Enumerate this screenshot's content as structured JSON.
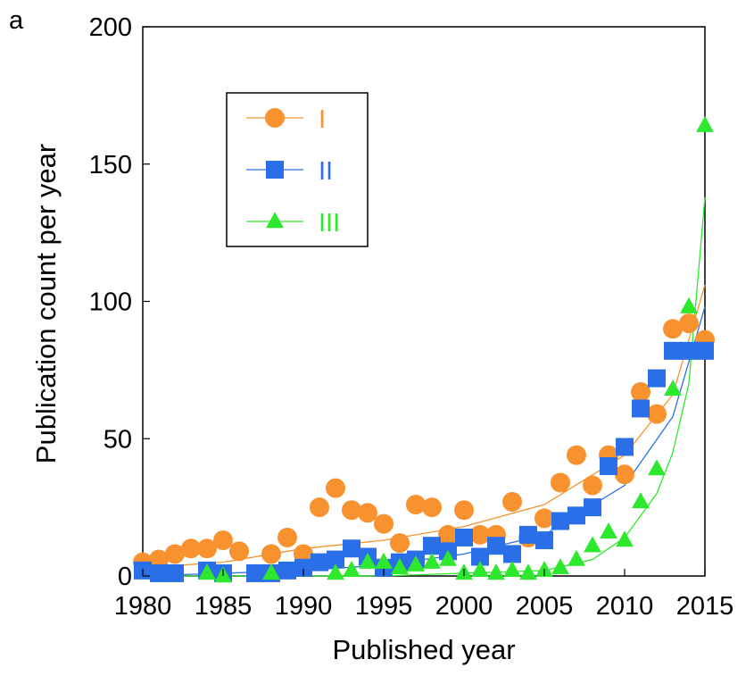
{
  "panel_label": "a",
  "chart_data": {
    "type": "scatter",
    "title": "",
    "xlabel": "Published year",
    "ylabel": "Publication count per year",
    "xlim": [
      1980,
      2015
    ],
    "ylim": [
      0,
      200
    ],
    "xticks": [
      1980,
      1985,
      1990,
      1995,
      2000,
      2005,
      2010,
      2015
    ],
    "yticks": [
      0,
      50,
      100,
      150,
      200
    ],
    "grid": false,
    "legend": "top-left",
    "series": [
      {
        "name": "I",
        "color": "#F7922E",
        "marker": "circle",
        "x": [
          1980,
          1981,
          1982,
          1983,
          1984,
          1985,
          1986,
          1988,
          1989,
          1990,
          1991,
          1992,
          1993,
          1994,
          1995,
          1996,
          1997,
          1998,
          1999,
          2000,
          2001,
          2002,
          2003,
          2004,
          2005,
          2006,
          2007,
          2008,
          2009,
          2010,
          2011,
          2012,
          2013,
          2014,
          2015
        ],
        "y": [
          5,
          6,
          8,
          10,
          10,
          13,
          9,
          8,
          14,
          8,
          25,
          32,
          24,
          23,
          19,
          12,
          26,
          25,
          15,
          24,
          15,
          15,
          27,
          14,
          21,
          34,
          44,
          33,
          44,
          37,
          67,
          59,
          90,
          92,
          86
        ],
        "trend": [
          [
            1980,
            3
          ],
          [
            1985,
            5
          ],
          [
            1990,
            10
          ],
          [
            1995,
            13
          ],
          [
            2000,
            18
          ],
          [
            2005,
            26
          ],
          [
            2010,
            44
          ],
          [
            2013,
            66
          ],
          [
            2015,
            106
          ]
        ]
      },
      {
        "name": "II",
        "color": "#2B6FE8",
        "marker": "square",
        "x": [
          1980,
          1981,
          1982,
          1984,
          1985,
          1987,
          1988,
          1989,
          1990,
          1991,
          1992,
          1993,
          1994,
          1995,
          1996,
          1997,
          1998,
          1999,
          2000,
          2001,
          2002,
          2003,
          2004,
          2005,
          2006,
          2007,
          2008,
          2009,
          2010,
          2011,
          2012,
          2013,
          2014,
          2015
        ],
        "y": [
          2,
          1,
          1,
          2,
          1,
          1,
          1,
          2,
          3,
          5,
          6,
          10,
          7,
          3,
          5,
          6,
          11,
          9,
          14,
          7,
          11,
          8,
          15,
          13,
          20,
          22,
          25,
          40,
          47,
          61,
          72,
          82,
          82,
          82
        ],
        "trend": [
          [
            1980,
            0
          ],
          [
            1990,
            2
          ],
          [
            1995,
            4
          ],
          [
            2000,
            8
          ],
          [
            2005,
            15
          ],
          [
            2010,
            33
          ],
          [
            2013,
            58
          ],
          [
            2015,
            98
          ]
        ]
      },
      {
        "name": "III",
        "color": "#2DE82D",
        "marker": "triangle",
        "x": [
          1984,
          1985,
          1988,
          1992,
          1993,
          1994,
          1995,
          1996,
          1997,
          1998,
          1999,
          2000,
          2001,
          2002,
          2003,
          2004,
          2005,
          2006,
          2007,
          2008,
          2009,
          2010,
          2011,
          2012,
          2013,
          2014,
          2015
        ],
        "y": [
          1,
          0,
          1,
          1,
          2,
          5,
          5,
          3,
          4,
          5,
          6,
          1,
          2,
          1,
          2,
          1,
          2,
          3,
          6,
          11,
          16,
          13,
          27,
          39,
          68,
          98,
          164
        ],
        "trend": [
          [
            1980,
            0
          ],
          [
            1995,
            0
          ],
          [
            2000,
            1
          ],
          [
            2005,
            2
          ],
          [
            2008,
            6
          ],
          [
            2010,
            14
          ],
          [
            2012,
            30
          ],
          [
            2013,
            45
          ],
          [
            2014,
            70
          ],
          [
            2015,
            138
          ]
        ]
      }
    ]
  }
}
